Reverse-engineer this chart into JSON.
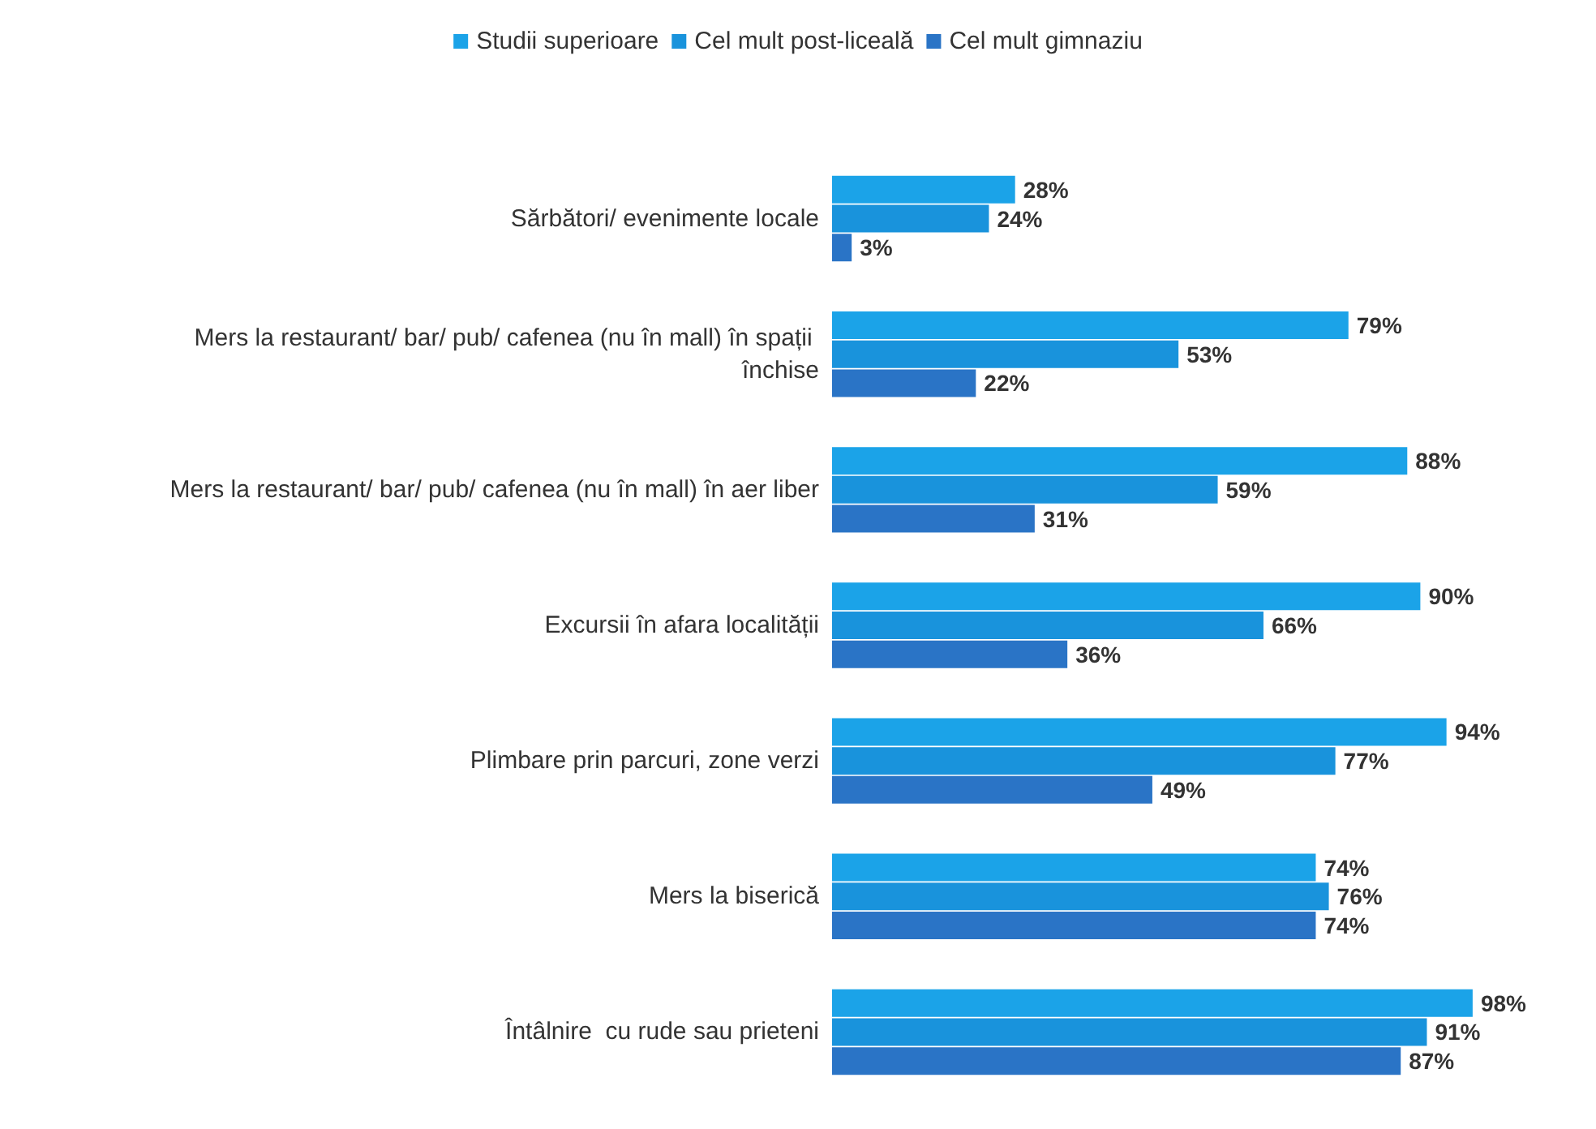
{
  "chart_data": {
    "type": "bar",
    "orientation": "horizontal",
    "legend": "top",
    "grid": false,
    "categories": [
      "Sărbători/ evenimente locale",
      "Mers la restaurant/ bar/ pub/ cafenea (nu în mall) în spații închise",
      "Mers la restaurant/ bar/ pub/ cafenea (nu în mall) în aer liber",
      "Excursii în afara localității",
      "Plimbare prin parcuri, zone verzi",
      "Mers la biserică",
      "Întâlnire  cu rude sau prieteni"
    ],
    "series": [
      {
        "name": "Studii superioare",
        "color": "#1ba3e8",
        "values": [
          28,
          79,
          88,
          90,
          94,
          74,
          98
        ],
        "value_labels": [
          "28%",
          "79%",
          "88%",
          "90%",
          "94%",
          "74%",
          "98%"
        ]
      },
      {
        "name": "Cel mult post-liceală",
        "color": "#1993dc",
        "values": [
          24,
          53,
          59,
          66,
          77,
          76,
          91
        ],
        "value_labels": [
          "24%",
          "53%",
          "59%",
          "66%",
          "77%",
          "76%",
          "91%"
        ]
      },
      {
        "name": "Cel mult gimnaziu",
        "color": "#2a74c6",
        "values": [
          3,
          22,
          31,
          36,
          49,
          74,
          87
        ],
        "value_labels": [
          "3%",
          "22%",
          "31%",
          "36%",
          "49%",
          "74%",
          "87%"
        ]
      }
    ]
  }
}
